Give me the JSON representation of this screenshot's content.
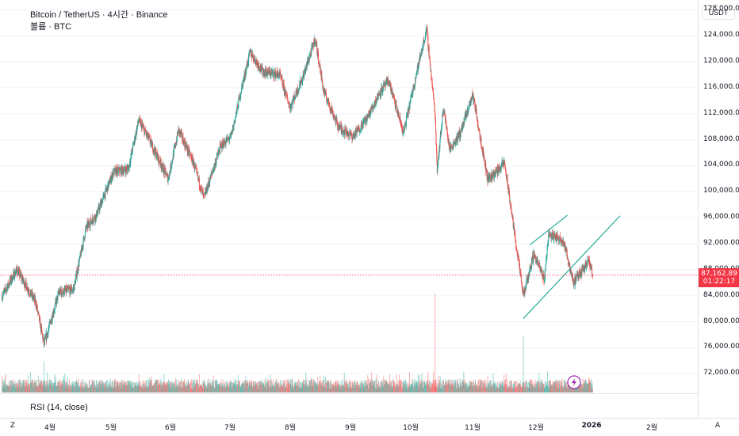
{
  "legend": {
    "title": "Bitcoin / TetherUS · 4시간 · Binance",
    "volume": "볼륨 · BTC"
  },
  "rsi": {
    "label": "RSI (14, close)"
  },
  "price_axis": {
    "currency_button": "USDT",
    "ticks": [
      "128,000.00",
      "124,000.00",
      "120,000.00",
      "116,000.00",
      "112,000.00",
      "108,000.00",
      "104,000.00",
      "100,000.00",
      "96,000.00",
      "92,000.00",
      "88,000.00",
      "84,000.00",
      "80,000.00",
      "76,000.00",
      "72,000.00"
    ],
    "current_price": "87,162.89",
    "countdown": "01:22:17"
  },
  "time_axis": {
    "left_letter": "Z",
    "right_letter": "A",
    "months": [
      "4월",
      "5월",
      "6월",
      "7월",
      "8월",
      "9월",
      "10월",
      "11월",
      "12월",
      "2026",
      "2월"
    ]
  },
  "colors": {
    "up": "#26a69a",
    "down": "#ef5350",
    "trend": "#22ab94",
    "price_line": "#f23645",
    "flash": "#9c27b0"
  },
  "chart_data": {
    "type": "candlestick",
    "symbol": "BTCUSDT",
    "interval": "4h",
    "y_range": [
      69000,
      129500
    ],
    "x_range": [
      "2025-03-17",
      "2026-02-12"
    ],
    "current_price": 87162.89,
    "price_path": [
      [
        "2025-03-18",
        84000
      ],
      [
        "2025-03-25",
        88000
      ],
      [
        "2025-04-03",
        83000
      ],
      [
        "2025-04-07",
        76500
      ],
      [
        "2025-04-14",
        84500
      ],
      [
        "2025-04-21",
        85000
      ],
      [
        "2025-04-27",
        94500
      ],
      [
        "2025-05-02",
        96500
      ],
      [
        "2025-05-10",
        103000
      ],
      [
        "2025-05-17",
        103500
      ],
      [
        "2025-05-22",
        111000
      ],
      [
        "2025-05-27",
        108000
      ],
      [
        "2025-06-05",
        102000
      ],
      [
        "2025-06-10",
        109500
      ],
      [
        "2025-06-17",
        104500
      ],
      [
        "2025-06-22",
        99000
      ],
      [
        "2025-06-30",
        107000
      ],
      [
        "2025-07-05",
        108500
      ],
      [
        "2025-07-10",
        116000
      ],
      [
        "2025-07-14",
        121500
      ],
      [
        "2025-07-20",
        118500
      ],
      [
        "2025-07-28",
        118000
      ],
      [
        "2025-08-02",
        113000
      ],
      [
        "2025-08-08",
        117500
      ],
      [
        "2025-08-14",
        123500
      ],
      [
        "2025-08-18",
        115500
      ],
      [
        "2025-08-25",
        110000
      ],
      [
        "2025-09-01",
        108500
      ],
      [
        "2025-09-08",
        111500
      ],
      [
        "2025-09-14",
        115500
      ],
      [
        "2025-09-18",
        117000
      ],
      [
        "2025-09-25",
        109000
      ],
      [
        "2025-10-01",
        118000
      ],
      [
        "2025-10-06",
        125000
      ],
      [
        "2025-10-10",
        112000
      ],
      [
        "2025-10-11",
        103500
      ],
      [
        "2025-10-14",
        113000
      ],
      [
        "2025-10-17",
        106500
      ],
      [
        "2025-10-22",
        109000
      ],
      [
        "2025-10-28",
        115000
      ],
      [
        "2025-11-04",
        102000
      ],
      [
        "2025-11-08",
        103000
      ],
      [
        "2025-11-12",
        104500
      ],
      [
        "2025-11-16",
        95500
      ],
      [
        "2025-11-21",
        84000
      ],
      [
        "2025-11-26",
        90500
      ],
      [
        "2025-12-01",
        86500
      ],
      [
        "2025-12-03",
        93500
      ],
      [
        "2025-12-10",
        92500
      ],
      [
        "2025-12-15",
        86000
      ],
      [
        "2025-12-19",
        88000
      ],
      [
        "2025-12-22",
        89500
      ],
      [
        "2025-12-24",
        87162.89
      ]
    ],
    "annotations": [
      {
        "type": "trendline",
        "from": [
          "2025-11-21",
          80500
        ],
        "to": [
          "2026-01-06",
          96300
        ]
      },
      {
        "type": "trendline",
        "from": [
          "2025-11-24",
          91800
        ],
        "to": [
          "2025-12-12",
          96400
        ]
      }
    ]
  }
}
